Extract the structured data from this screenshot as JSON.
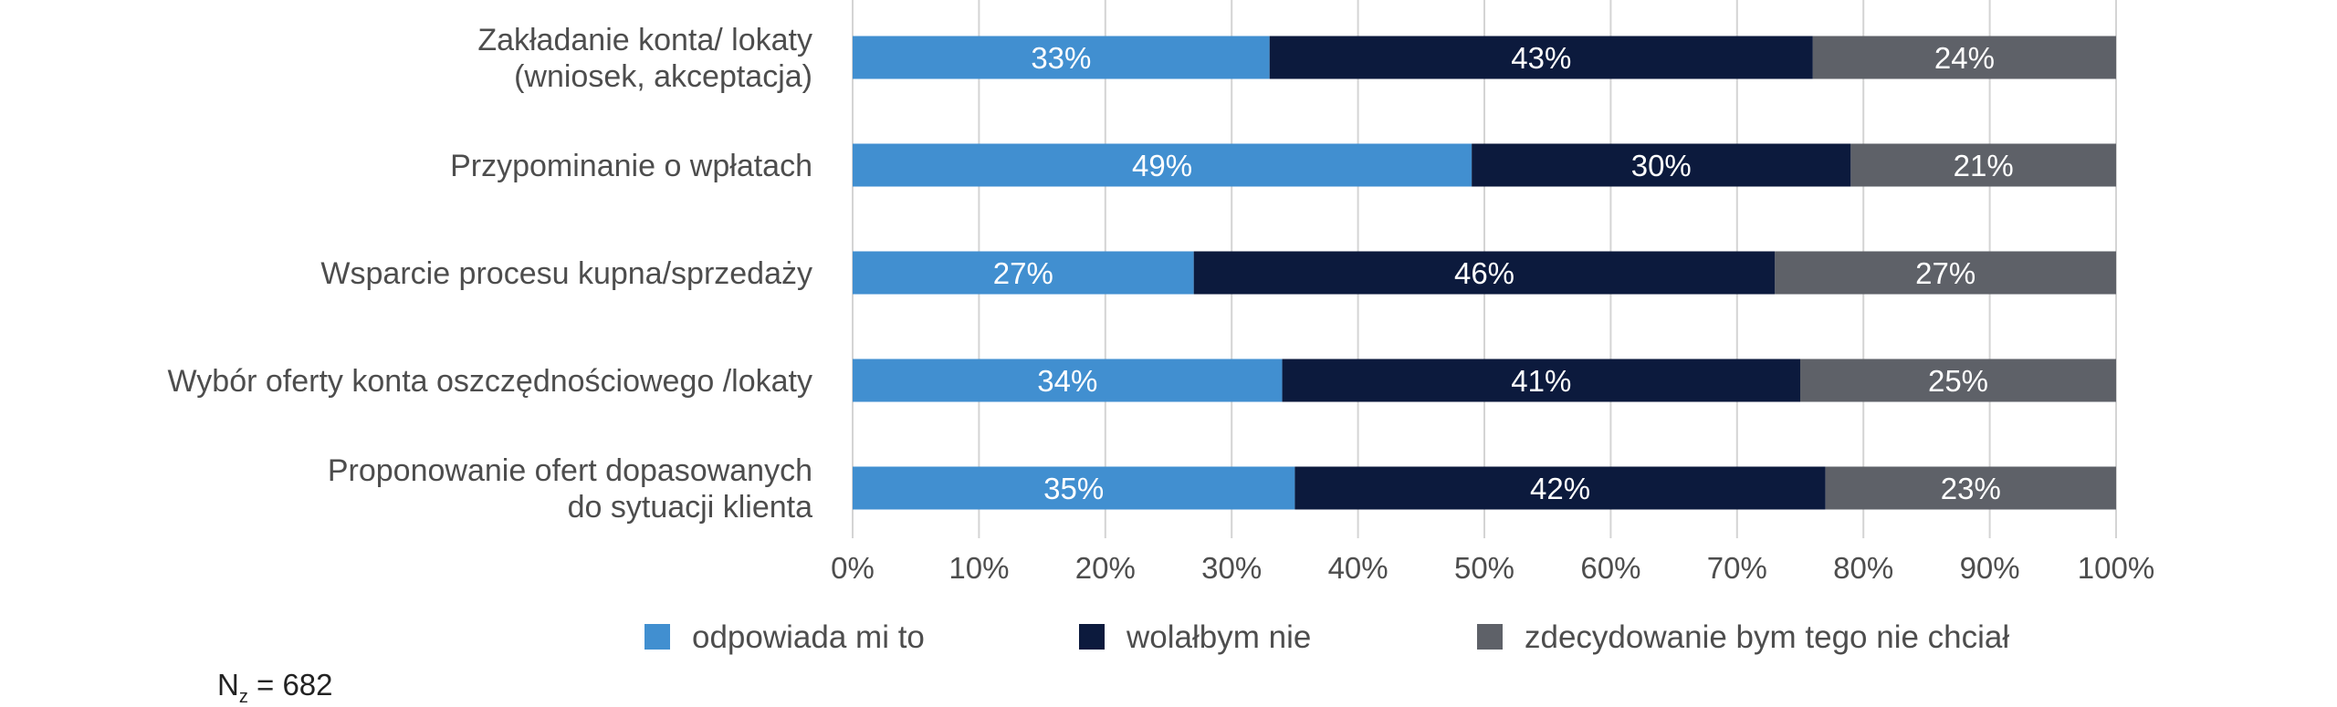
{
  "chart_data": {
    "type": "bar",
    "orientation": "horizontal",
    "stacked": true,
    "categories": [
      [
        "Zakładanie konta/ lokaty",
        "(wniosek, akceptacja)"
      ],
      [
        "Przypominanie o wpłatach"
      ],
      [
        "Wsparcie procesu kupna/sprzedaży"
      ],
      [
        "Wybór oferty konta oszczędnościowego /lokaty"
      ],
      [
        "Proponowanie ofert dopasowanych",
        "do sytuacji klienta"
      ]
    ],
    "series": [
      {
        "name": "odpowiada mi to",
        "color": "#418fd0",
        "values": [
          33,
          49,
          27,
          34,
          35
        ]
      },
      {
        "name": "wolałbym nie",
        "color": "#0c1a3d",
        "values": [
          43,
          30,
          46,
          41,
          42
        ]
      },
      {
        "name": "zdecydowanie bym tego nie chciał",
        "color": "#5e6168",
        "values": [
          24,
          21,
          27,
          25,
          23
        ]
      }
    ],
    "xlim": [
      0,
      100
    ],
    "x_ticks": [
      0,
      10,
      20,
      30,
      40,
      50,
      60,
      70,
      80,
      90,
      100
    ],
    "x_tick_suffix": "%",
    "value_suffix": "%",
    "grid": "vertical",
    "legend_position": "bottom",
    "title": "",
    "xlabel": "",
    "ylabel": ""
  },
  "note": {
    "symbol": "N",
    "subscript": "z",
    "text": " = 682"
  }
}
